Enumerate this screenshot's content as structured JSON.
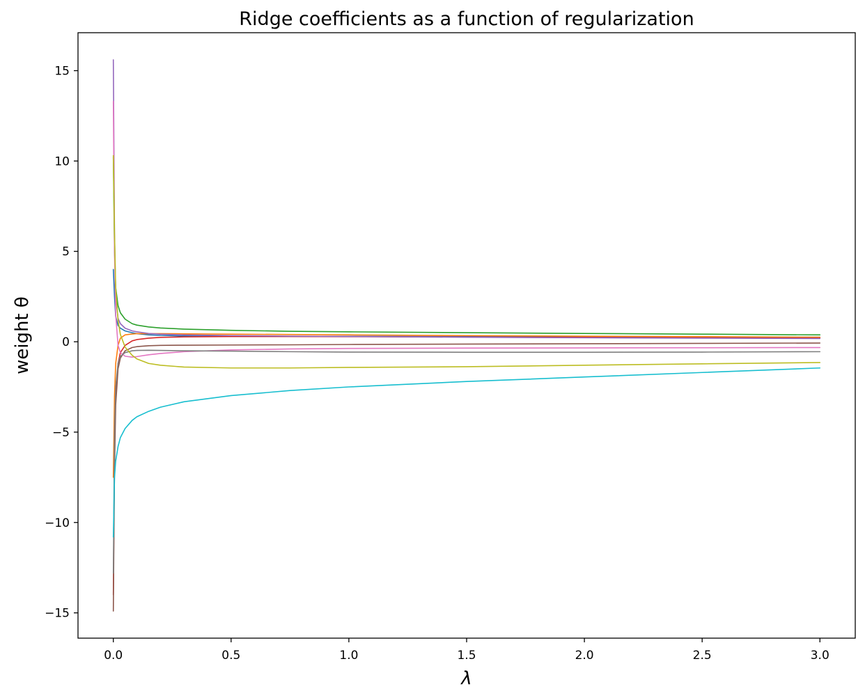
{
  "chart_data": {
    "type": "line",
    "title": "Ridge coefficients as a function of regularization",
    "xlabel": "λ",
    "ylabel": "weight θ",
    "xlim": [
      -0.15,
      3.15
    ],
    "ylim": [
      -16.4,
      17.1
    ],
    "xticks": [
      0.0,
      0.5,
      1.0,
      1.5,
      2.0,
      2.5,
      3.0
    ],
    "xtick_labels": [
      "0.0",
      "0.5",
      "1.0",
      "1.5",
      "2.0",
      "2.5",
      "3.0"
    ],
    "yticks": [
      -15,
      -10,
      -5,
      0,
      5,
      10,
      15
    ],
    "ytick_labels": [
      "−15",
      "−10",
      "−5",
      "0",
      "5",
      "10",
      "15"
    ],
    "grid": false,
    "legend": "none",
    "x": [
      0.0,
      0.005,
      0.01,
      0.02,
      0.03,
      0.05,
      0.08,
      0.1,
      0.15,
      0.2,
      0.3,
      0.5,
      0.75,
      1.0,
      1.5,
      2.0,
      2.5,
      3.0
    ],
    "series": [
      {
        "color": "#1f77b4",
        "values": [
          4.0,
          2.5,
          1.4,
          0.9,
          0.75,
          0.6,
          0.5,
          0.45,
          0.38,
          0.35,
          0.32,
          0.3,
          0.3,
          0.3,
          0.28,
          0.27,
          0.26,
          0.25
        ]
      },
      {
        "color": "#ff7f0e",
        "values": [
          -7.5,
          -3.0,
          -1.2,
          -0.2,
          0.2,
          0.38,
          0.43,
          0.45,
          0.45,
          0.45,
          0.44,
          0.42,
          0.4,
          0.38,
          0.34,
          0.31,
          0.28,
          0.25
        ]
      },
      {
        "color": "#2ca02c",
        "values": [
          10.2,
          5.0,
          3.0,
          2.0,
          1.6,
          1.25,
          1.0,
          0.92,
          0.82,
          0.76,
          0.7,
          0.63,
          0.58,
          0.55,
          0.5,
          0.46,
          0.42,
          0.38
        ]
      },
      {
        "color": "#d62728",
        "values": [
          -14.0,
          -6.0,
          -3.0,
          -1.2,
          -0.6,
          -0.2,
          0.05,
          0.12,
          0.2,
          0.24,
          0.27,
          0.29,
          0.29,
          0.28,
          0.26,
          0.24,
          0.22,
          0.2
        ]
      },
      {
        "color": "#9467bd",
        "values": [
          15.6,
          6.0,
          2.5,
          1.3,
          1.0,
          0.75,
          0.6,
          0.55,
          0.46,
          0.42,
          0.38,
          0.34,
          0.31,
          0.29,
          0.25,
          0.22,
          0.2,
          0.18
        ]
      },
      {
        "color": "#8c564b",
        "values": [
          -14.9,
          -7.0,
          -3.5,
          -1.5,
          -0.9,
          -0.5,
          -0.32,
          -0.27,
          -0.22,
          -0.2,
          -0.19,
          -0.18,
          -0.17,
          -0.15,
          -0.13,
          -0.11,
          -0.09,
          -0.07
        ]
      },
      {
        "color": "#e377c2",
        "values": [
          13.3,
          5.0,
          1.5,
          -0.2,
          -0.6,
          -0.8,
          -0.85,
          -0.82,
          -0.72,
          -0.65,
          -0.55,
          -0.45,
          -0.4,
          -0.37,
          -0.35,
          -0.34,
          -0.33,
          -0.32
        ]
      },
      {
        "color": "#7f7f7f",
        "values": [
          -12.8,
          -5.0,
          -2.5,
          -1.2,
          -0.8,
          -0.6,
          -0.5,
          -0.48,
          -0.47,
          -0.48,
          -0.5,
          -0.52,
          -0.55,
          -0.57,
          -0.58,
          -0.58,
          -0.57,
          -0.55
        ]
      },
      {
        "color": "#bcbd22",
        "values": [
          10.3,
          6.0,
          3.0,
          1.2,
          0.4,
          -0.3,
          -0.75,
          -0.95,
          -1.2,
          -1.3,
          -1.4,
          -1.45,
          -1.45,
          -1.42,
          -1.38,
          -1.3,
          -1.22,
          -1.15
        ]
      },
      {
        "color": "#17becf",
        "values": [
          -10.8,
          -7.5,
          -6.6,
          -5.8,
          -5.3,
          -4.8,
          -4.35,
          -4.15,
          -3.85,
          -3.62,
          -3.32,
          -2.98,
          -2.7,
          -2.5,
          -2.2,
          -1.95,
          -1.7,
          -1.45
        ]
      }
    ]
  }
}
